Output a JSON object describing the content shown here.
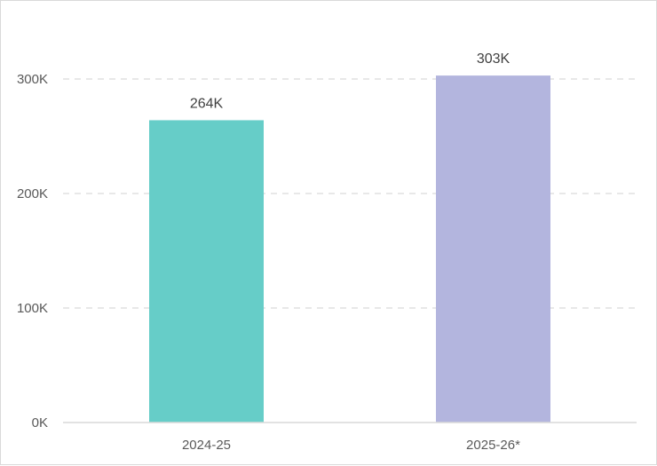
{
  "chart_data": {
    "type": "bar",
    "title": "",
    "xlabel": "",
    "ylabel": "",
    "categories": [
      "2024-25",
      "2025-26*"
    ],
    "values": [
      264000,
      303000
    ],
    "data_labels": [
      "264K",
      "303K"
    ],
    "bar_colors": [
      "#66cdc8",
      "#b3b5de"
    ],
    "ylim": [
      0,
      300000
    ],
    "yticks": [
      0,
      100000,
      200000,
      300000
    ],
    "ytick_labels": [
      "0K",
      "100K",
      "200K",
      "300K"
    ],
    "grid": true,
    "legend": "none"
  }
}
